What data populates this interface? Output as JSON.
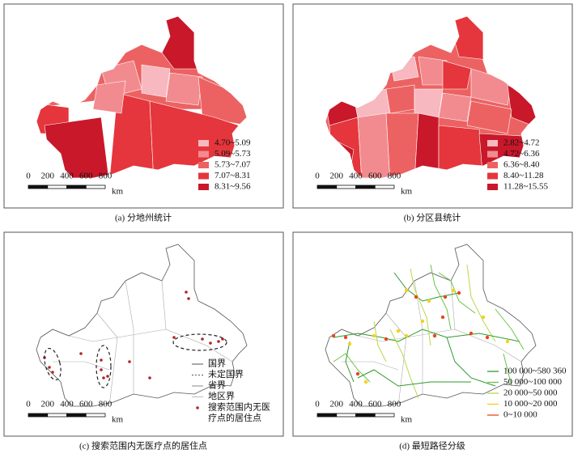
{
  "panels": [
    {
      "caption": "(a) 分地州统计",
      "scale": {
        "ticks": [
          0,
          200,
          400,
          600,
          800
        ],
        "unit": "km"
      },
      "legend": [
        {
          "label": "4.70~5.09",
          "color": "#f7b8bf"
        },
        {
          "label": "5.09~5.73",
          "color": "#f28b8f"
        },
        {
          "label": "5.73~7.07",
          "color": "#ec6262"
        },
        {
          "label": "7.07~8.31",
          "color": "#e4363c"
        },
        {
          "label": "8.31~9.56",
          "color": "#c8182a"
        }
      ]
    },
    {
      "caption": "(b) 分区县统计",
      "scale": {
        "ticks": [
          0,
          200,
          400,
          600,
          800
        ],
        "unit": "km"
      },
      "legend": [
        {
          "label": "2.82~4.72",
          "color": "#f7b8bf"
        },
        {
          "label": "4.72~6.36",
          "color": "#f28b8f"
        },
        {
          "label": "6.36~8.40",
          "color": "#ec6262"
        },
        {
          "label": "8.40~11.28",
          "color": "#e4363c"
        },
        {
          "label": "11.28~15.55",
          "color": "#c8182a"
        }
      ]
    },
    {
      "caption": "(c) 搜索范围内无医疗点的居住点",
      "scale": {
        "ticks": [
          0,
          200,
          400,
          600,
          800
        ],
        "unit": "km"
      },
      "legend": [
        {
          "label": [
            "国界"
          ],
          "color": "#555555"
        },
        {
          "label": [
            "未定国界"
          ],
          "color": "#555555"
        },
        {
          "label": [
            "省界"
          ],
          "color": "#888888"
        },
        {
          "label": [
            "地区界"
          ],
          "color": "#bbbbbb"
        },
        {
          "label": [
            "搜索范围内无医",
            "疗点的居住点"
          ],
          "color": "#b0252a"
        }
      ]
    },
    {
      "caption": "(d) 最短路径分级",
      "scale": {
        "ticks": [
          0,
          200,
          400,
          600,
          800
        ],
        "unit": "km"
      },
      "legend": [
        {
          "label": "100 000~580 360",
          "color": "#2e9a2e"
        },
        {
          "label": "50 000~100 000",
          "color": "#6cc24a"
        },
        {
          "label": "20 000~50 000",
          "color": "#b5d94c"
        },
        {
          "label": "10 000~20 000",
          "color": "#f2d21b"
        },
        {
          "label": "0~10 000",
          "color": "#e8461e"
        }
      ]
    }
  ]
}
